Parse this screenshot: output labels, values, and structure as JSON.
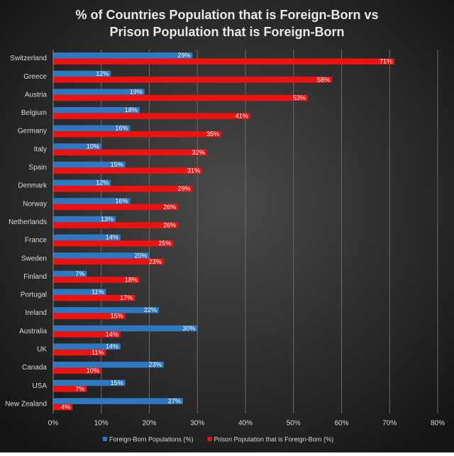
{
  "chart_data": {
    "type": "bar",
    "orientation": "horizontal",
    "title": [
      "% of Countries Population that is Foreign-Born vs",
      "Prison Population that is Foreign-Born"
    ],
    "categories": [
      "Switzerland",
      "Greece",
      "Austria",
      "Belgium",
      "Germany",
      "Italy",
      "Spain",
      "Denmark",
      "Norway",
      "Netherlands",
      "France",
      "Sweden",
      "Finland",
      "Portugal",
      "Ireland",
      "Australia",
      "UK",
      "Canada",
      "USA",
      "New Zealand"
    ],
    "series": [
      {
        "name": "Foreign-Born Populations (%)",
        "color": "#2e78c2",
        "values": [
          29,
          12,
          19,
          18,
          16,
          10,
          15,
          12,
          16,
          13,
          14,
          20,
          7,
          11,
          22,
          30,
          14,
          23,
          15,
          27
        ],
        "value_labels": [
          "29%",
          "12%",
          "19%",
          "18%",
          "16%",
          "10%",
          "15%",
          "12%",
          "16%",
          "13%",
          "14%",
          "20%",
          "7%",
          "11%",
          "22%",
          "30%",
          "14%",
          "23%",
          "15%",
          "27%"
        ]
      },
      {
        "name": "Prison Population that is Foreign-Born (%)",
        "color": "#ee1111",
        "values": [
          71,
          58,
          53,
          41,
          35,
          32,
          31,
          29,
          26,
          26,
          25,
          23,
          18,
          17,
          15,
          14,
          11,
          10,
          7,
          4
        ],
        "value_labels": [
          "71%",
          "58%",
          "53%",
          "41%",
          "35%",
          "32%",
          "31%",
          "29%",
          "26%",
          "26%",
          "25%",
          "23%",
          "18%",
          "17%",
          "15%",
          "14%",
          "11%",
          "10%",
          "7%",
          "4%"
        ]
      }
    ],
    "xlim": [
      0,
      80
    ],
    "xticks": [
      {
        "value": 0,
        "label": "0%"
      },
      {
        "value": 10,
        "label": "10%"
      },
      {
        "value": 20,
        "label": "20%"
      },
      {
        "value": 30,
        "label": "30%"
      },
      {
        "value": 40,
        "label": "40%"
      },
      {
        "value": 50,
        "label": "50%"
      },
      {
        "value": 60,
        "label": "60%"
      },
      {
        "value": 70,
        "label": "70%"
      },
      {
        "value": 80,
        "label": "80%"
      }
    ],
    "grid": true,
    "legend": "bottom"
  }
}
